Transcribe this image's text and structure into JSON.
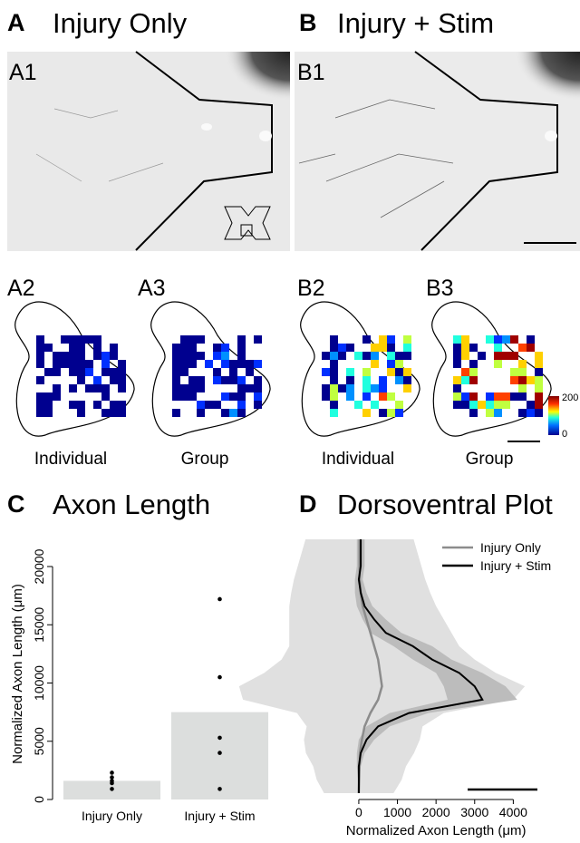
{
  "panels": {
    "A": {
      "letter": "A",
      "title": "Injury Only",
      "image": "A1",
      "maps": [
        {
          "label": "A2",
          "caption": "Individual"
        },
        {
          "label": "A3",
          "caption": "Group"
        }
      ]
    },
    "B": {
      "letter": "B",
      "title": "Injury + Stim",
      "image": "B1",
      "maps": [
        {
          "label": "B2",
          "caption": "Individual"
        },
        {
          "label": "B3",
          "caption": "Group"
        }
      ]
    },
    "colorbar": {
      "range": [
        0,
        200
      ]
    },
    "C": {
      "letter": "C"
    },
    "D": {
      "letter": "D"
    }
  },
  "chart_data": [
    {
      "type": "bar",
      "title": "Axon Length",
      "ylabel": "Normalized Axon Length (μm)",
      "categories": [
        "Injury Only",
        "Injury + Stim"
      ],
      "values": [
        1600,
        7500
      ],
      "color": "#dcdedd",
      "points": [
        [
          2300,
          1900,
          1600,
          1400,
          900
        ],
        [
          17200,
          10500,
          5300,
          4000,
          900
        ]
      ],
      "point_color": "#000000",
      "ylim": [
        0,
        20000
      ],
      "yticks": [
        0,
        5000,
        10000,
        15000,
        20000
      ]
    },
    {
      "type": "line",
      "title": "Dorsoventral Plot",
      "xlabel": "Normalized Axon Length (μm)",
      "xlim": [
        -1500,
        5000
      ],
      "xticks": [
        0,
        1000,
        2000,
        3000,
        4000
      ],
      "legend": "top-right",
      "series": [
        {
          "name": "Injury Only",
          "color": "#8c8c8c",
          "band_color": "#e0e0e0",
          "values": [
            20,
            20,
            20,
            20,
            50,
            100,
            200,
            300,
            400,
            500,
            550,
            600,
            500,
            300,
            150,
            80,
            30,
            20,
            10,
            0
          ],
          "errors": [
            1400,
            1500,
            1600,
            1700,
            1800,
            1900,
            2000,
            2100,
            2200,
            2500,
            3000,
            3700,
            3500,
            1900,
            1500,
            1500,
            1400,
            1200,
            1100,
            900
          ]
        },
        {
          "name": "Injury + Stim",
          "color": "#000000",
          "band_color": "#bcbcbc",
          "values": [
            50,
            50,
            50,
            0,
            50,
            150,
            400,
            700,
            1400,
            1900,
            2600,
            3000,
            3200,
            1300,
            500,
            200,
            50,
            0,
            0,
            0
          ],
          "errors": [
            100,
            100,
            100,
            100,
            150,
            200,
            300,
            400,
            500,
            500,
            600,
            800,
            900,
            500,
            300,
            200,
            100,
            50,
            20,
            0
          ]
        }
      ]
    }
  ]
}
